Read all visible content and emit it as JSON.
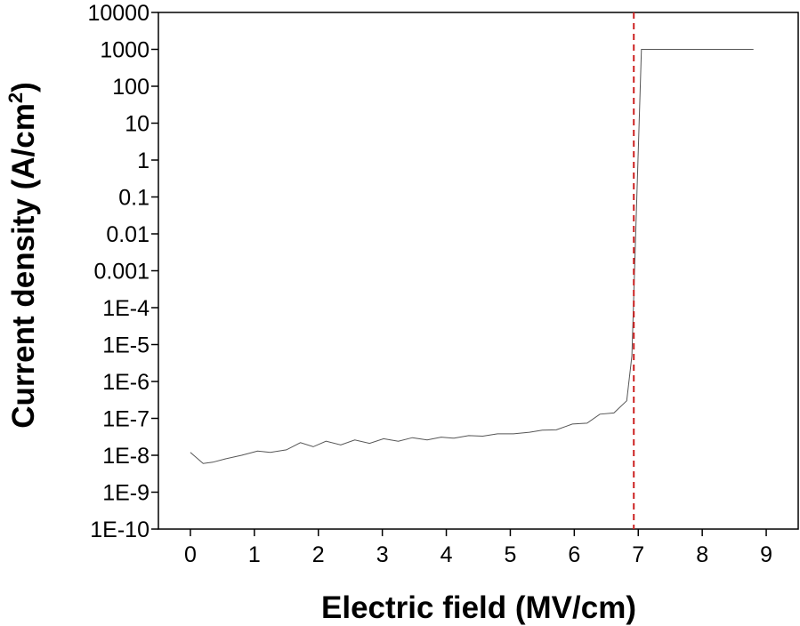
{
  "chart_data": {
    "type": "line",
    "xlabel": "Electric field (MV/cm)",
    "ylabel_main": "Current density (A/cm",
    "ylabel_sup": "2",
    "ylabel_close": ")",
    "y_scale": "log",
    "xlim": [
      -0.5,
      9.5
    ],
    "ylim": [
      1e-10,
      10000
    ],
    "x_ticks": [
      0,
      1,
      2,
      3,
      4,
      5,
      6,
      7,
      8,
      9
    ],
    "x_tick_labels": [
      "0",
      "1",
      "2",
      "3",
      "4",
      "5",
      "6",
      "7",
      "8",
      "9"
    ],
    "y_ticks": [
      1e-10,
      1e-09,
      1e-08,
      1e-07,
      1e-06,
      1e-05,
      0.0001,
      0.001,
      0.01,
      0.1,
      1,
      10,
      100,
      1000,
      10000
    ],
    "y_tick_labels": [
      "1E-10",
      "1E-9",
      "1E-8",
      "1E-7",
      "1E-6",
      "1E-5",
      "1E-4",
      "0.001",
      "0.01",
      "0.1",
      "1",
      "10",
      "100",
      "1000",
      "10000"
    ],
    "grid": false,
    "series": [
      {
        "color": "#555555",
        "x": [
          0,
          0.2,
          0.35,
          0.55,
          0.8,
          1.05,
          1.25,
          1.5,
          1.72,
          1.92,
          2.12,
          2.35,
          2.57,
          2.8,
          3.02,
          3.25,
          3.47,
          3.7,
          3.92,
          4.12,
          4.35,
          4.57,
          4.8,
          5.05,
          5.3,
          5.5,
          5.72,
          5.97,
          6.2,
          6.4,
          6.62,
          6.82,
          6.9,
          7.05,
          7.3,
          8.0,
          8.8
        ],
        "y": [
          1.2e-08,
          6e-09,
          6.5e-09,
          8e-09,
          1e-08,
          1.3e-08,
          1.2e-08,
          1.4e-08,
          2.2e-08,
          1.7e-08,
          2.4e-08,
          1.9e-08,
          2.6e-08,
          2.1e-08,
          2.8e-08,
          2.4e-08,
          3e-08,
          2.6e-08,
          3.1e-08,
          2.9e-08,
          3.4e-08,
          3.3e-08,
          3.8e-08,
          3.8e-08,
          4.2e-08,
          4.8e-08,
          4.9e-08,
          7e-08,
          7.4e-08,
          1.3e-07,
          1.4e-07,
          3e-07,
          5e-06,
          1000,
          1000,
          1000,
          1000
        ]
      }
    ],
    "reference_line": {
      "x": 6.93,
      "style": "dashed",
      "color": "#cc2222"
    }
  }
}
